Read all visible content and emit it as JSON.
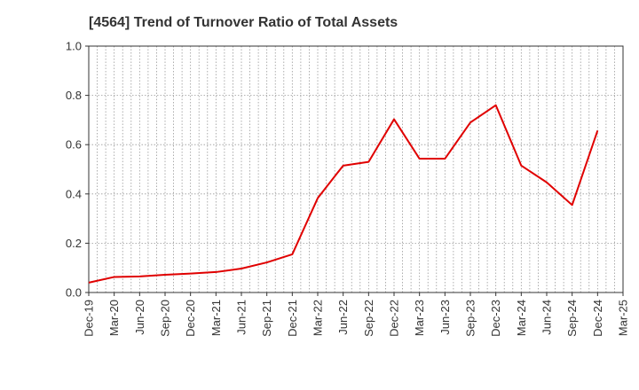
{
  "chart_data": {
    "type": "line",
    "title": "[4564]  Trend of Turnover Ratio of Total Assets",
    "xlabel": "",
    "ylabel": "",
    "ylim": [
      0.0,
      1.0
    ],
    "yticks": [
      "0.0",
      "0.2",
      "0.4",
      "0.6",
      "0.8",
      "1.0"
    ],
    "categories": [
      "Dec-19",
      "Mar-20",
      "Jun-20",
      "Sep-20",
      "Dec-20",
      "Mar-21",
      "Jun-21",
      "Sep-21",
      "Dec-21",
      "Mar-22",
      "Jun-22",
      "Sep-22",
      "Dec-22",
      "Mar-23",
      "Jun-23",
      "Sep-23",
      "Dec-23",
      "Mar-24",
      "Jun-24",
      "Sep-24",
      "Dec-24",
      "Mar-25"
    ],
    "series": [
      {
        "name": "",
        "color": "#e00000",
        "values": [
          0.04,
          0.063,
          0.065,
          0.072,
          0.077,
          0.083,
          0.097,
          0.122,
          0.155,
          0.383,
          0.515,
          0.53,
          0.703,
          0.543,
          0.543,
          0.69,
          0.76,
          0.515,
          0.447,
          0.355,
          0.657,
          null
        ]
      }
    ],
    "grid": true,
    "gridline_color": "#999999",
    "line_color": "#e00000"
  }
}
